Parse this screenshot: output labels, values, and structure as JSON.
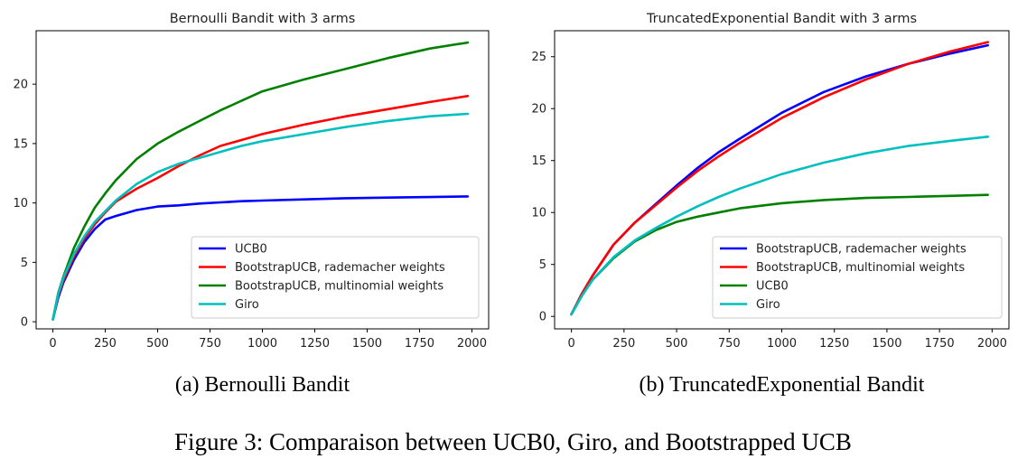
{
  "figure": {
    "caption": "Figure 3: Comparaison between UCB0, Giro, and Bootstrapped UCB"
  },
  "chart_data": [
    {
      "type": "line",
      "title": "Bernoulli Bandit with 3 arms",
      "subcaption": "(a) Bernoulli Bandit",
      "xlabel": "",
      "ylabel": "",
      "xlim": [
        -80,
        2080
      ],
      "ylim": [
        -0.6,
        24.5
      ],
      "xticks": [
        0,
        250,
        500,
        750,
        1000,
        1250,
        1500,
        1750,
        2000
      ],
      "yticks": [
        0,
        5,
        10,
        15,
        20
      ],
      "grid": false,
      "legend_position": "lower-right",
      "x": [
        0,
        25,
        50,
        100,
        150,
        200,
        250,
        300,
        400,
        500,
        600,
        700,
        800,
        900,
        1000,
        1200,
        1400,
        1600,
        1800,
        1980
      ],
      "series": [
        {
          "name": "UCB0",
          "color": "#0000ff",
          "values": [
            0.2,
            2.0,
            3.3,
            5.2,
            6.7,
            7.8,
            8.6,
            8.9,
            9.4,
            9.7,
            9.8,
            9.95,
            10.05,
            10.15,
            10.2,
            10.3,
            10.4,
            10.45,
            10.5,
            10.55
          ]
        },
        {
          "name": "BootstrapUCB, rademacher weights",
          "color": "#ff0000",
          "values": [
            0.2,
            2.2,
            3.5,
            5.5,
            7.0,
            8.2,
            9.2,
            10.1,
            11.2,
            12.1,
            13.1,
            14.0,
            14.8,
            15.3,
            15.8,
            16.6,
            17.3,
            17.9,
            18.5,
            19.0
          ]
        },
        {
          "name": "BootstrapUCB, multinomial weights",
          "color": "#008000",
          "values": [
            0.2,
            2.4,
            3.8,
            6.2,
            8.0,
            9.6,
            10.8,
            11.9,
            13.7,
            15.0,
            16.0,
            16.9,
            17.8,
            18.6,
            19.4,
            20.4,
            21.3,
            22.2,
            23.0,
            23.5
          ]
        },
        {
          "name": "Giro",
          "color": "#00bfbf",
          "values": [
            0.2,
            2.3,
            3.7,
            5.7,
            7.2,
            8.4,
            9.3,
            10.2,
            11.6,
            12.6,
            13.3,
            13.8,
            14.3,
            14.8,
            15.2,
            15.8,
            16.4,
            16.9,
            17.3,
            17.5
          ]
        }
      ]
    },
    {
      "type": "line",
      "title": "TruncatedExponential Bandit with 3 arms",
      "subcaption": "(b) TruncatedExponential Bandit",
      "xlabel": "",
      "ylabel": "",
      "xlim": [
        -80,
        2080
      ],
      "ylim": [
        -1.2,
        27.5
      ],
      "xticks": [
        0,
        250,
        500,
        750,
        1000,
        1250,
        1500,
        1750,
        2000
      ],
      "yticks": [
        0,
        5,
        10,
        15,
        20,
        25
      ],
      "grid": false,
      "legend_position": "lower-right",
      "x": [
        0,
        50,
        100,
        200,
        300,
        400,
        500,
        600,
        700,
        800,
        1000,
        1200,
        1400,
        1600,
        1800,
        1980
      ],
      "series": [
        {
          "name": "BootstrapUCB, rademacher weights",
          "color": "#0000ff",
          "values": [
            0.2,
            2.2,
            3.9,
            6.9,
            9.0,
            10.8,
            12.6,
            14.3,
            15.8,
            17.1,
            19.6,
            21.6,
            23.1,
            24.3,
            25.3,
            26.1
          ]
        },
        {
          "name": "BootstrapUCB, multinomial weights",
          "color": "#ff0000",
          "values": [
            0.2,
            2.2,
            3.9,
            6.9,
            9.0,
            10.7,
            12.4,
            14.0,
            15.4,
            16.7,
            19.1,
            21.1,
            22.8,
            24.3,
            25.5,
            26.4
          ]
        },
        {
          "name": "UCB0",
          "color": "#008000",
          "values": [
            0.2,
            2.0,
            3.5,
            5.6,
            7.2,
            8.3,
            9.1,
            9.6,
            10.0,
            10.4,
            10.9,
            11.2,
            11.4,
            11.5,
            11.6,
            11.7
          ]
        },
        {
          "name": "Giro",
          "color": "#00bfbf",
          "values": [
            0.2,
            2.0,
            3.5,
            5.7,
            7.3,
            8.5,
            9.6,
            10.6,
            11.5,
            12.3,
            13.7,
            14.8,
            15.7,
            16.4,
            16.9,
            17.3
          ]
        }
      ]
    }
  ]
}
